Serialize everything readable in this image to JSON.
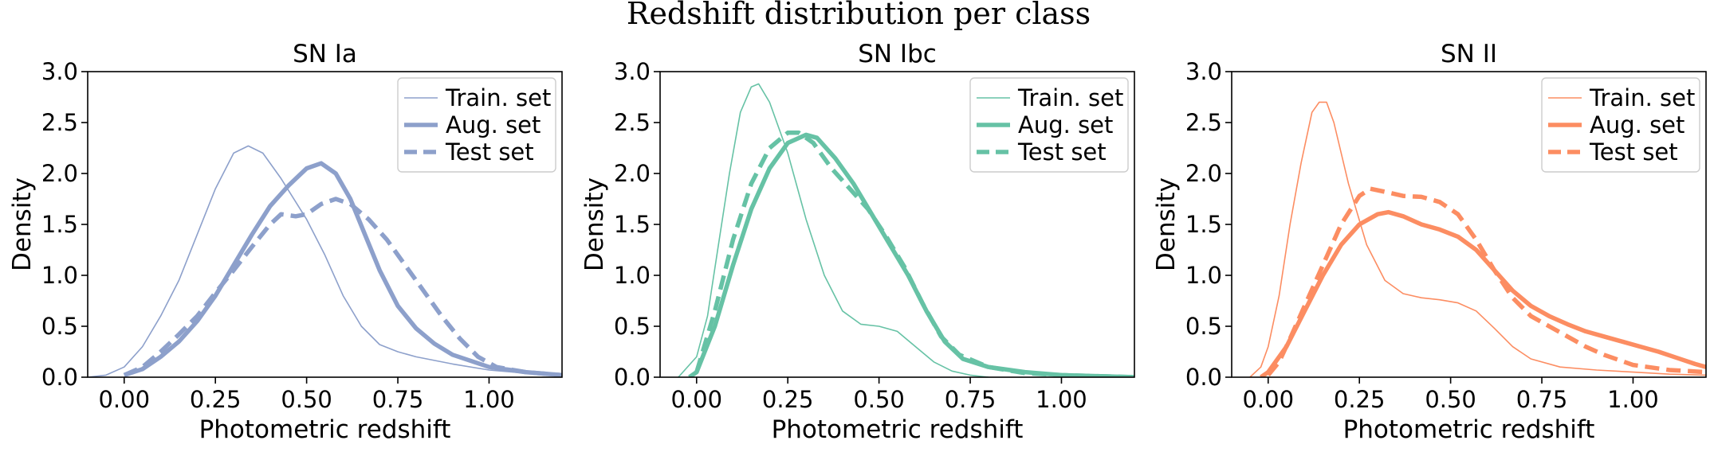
{
  "figure_title": "Redshift distribution per class",
  "chart_data": [
    {
      "type": "line",
      "title": "SN Ia",
      "xlabel": "Photometric redshift",
      "ylabel": "Density",
      "xlim": [
        -0.1,
        1.2
      ],
      "ylim": [
        0,
        3
      ],
      "xticks": [
        0,
        0.25,
        0.5,
        0.75,
        1.0
      ],
      "xtick_labels": [
        "0.00",
        "0.25",
        "0.50",
        "0.75",
        "1.00"
      ],
      "yticks": [
        0,
        0.5,
        1,
        1.5,
        2,
        2.5,
        3
      ],
      "ytick_labels": [
        "0.0",
        "0.5",
        "1.0",
        "1.5",
        "2.0",
        "2.5",
        "3.0"
      ],
      "color": "#8DA0CB",
      "legend_position": "top-right",
      "series": [
        {
          "name": "Train. set",
          "style": "thin",
          "points": [
            [
              -0.1,
              0.0
            ],
            [
              -0.05,
              0.02
            ],
            [
              0.0,
              0.1
            ],
            [
              0.05,
              0.3
            ],
            [
              0.1,
              0.6
            ],
            [
              0.15,
              0.95
            ],
            [
              0.2,
              1.4
            ],
            [
              0.25,
              1.85
            ],
            [
              0.3,
              2.2
            ],
            [
              0.34,
              2.27
            ],
            [
              0.38,
              2.2
            ],
            [
              0.43,
              1.95
            ],
            [
              0.5,
              1.55
            ],
            [
              0.55,
              1.2
            ],
            [
              0.6,
              0.8
            ],
            [
              0.65,
              0.5
            ],
            [
              0.7,
              0.32
            ],
            [
              0.75,
              0.25
            ],
            [
              0.8,
              0.2
            ],
            [
              0.9,
              0.13
            ],
            [
              1.0,
              0.07
            ],
            [
              1.1,
              0.04
            ],
            [
              1.2,
              0.02
            ]
          ]
        },
        {
          "name": "Aug. set",
          "style": "thick",
          "points": [
            [
              0.0,
              0.02
            ],
            [
              0.05,
              0.08
            ],
            [
              0.1,
              0.2
            ],
            [
              0.15,
              0.35
            ],
            [
              0.2,
              0.55
            ],
            [
              0.25,
              0.8
            ],
            [
              0.3,
              1.1
            ],
            [
              0.35,
              1.4
            ],
            [
              0.4,
              1.68
            ],
            [
              0.45,
              1.88
            ],
            [
              0.5,
              2.05
            ],
            [
              0.54,
              2.1
            ],
            [
              0.58,
              2.0
            ],
            [
              0.62,
              1.75
            ],
            [
              0.66,
              1.4
            ],
            [
              0.7,
              1.05
            ],
            [
              0.75,
              0.7
            ],
            [
              0.8,
              0.48
            ],
            [
              0.85,
              0.33
            ],
            [
              0.9,
              0.22
            ],
            [
              1.0,
              0.1
            ],
            [
              1.1,
              0.05
            ],
            [
              1.2,
              0.02
            ]
          ]
        },
        {
          "name": "Test set",
          "style": "dashed",
          "points": [
            [
              0.0,
              0.02
            ],
            [
              0.05,
              0.1
            ],
            [
              0.1,
              0.25
            ],
            [
              0.15,
              0.42
            ],
            [
              0.2,
              0.6
            ],
            [
              0.25,
              0.83
            ],
            [
              0.3,
              1.05
            ],
            [
              0.35,
              1.28
            ],
            [
              0.4,
              1.5
            ],
            [
              0.43,
              1.6
            ],
            [
              0.47,
              1.58
            ],
            [
              0.5,
              1.6
            ],
            [
              0.54,
              1.7
            ],
            [
              0.58,
              1.75
            ],
            [
              0.62,
              1.7
            ],
            [
              0.67,
              1.55
            ],
            [
              0.72,
              1.35
            ],
            [
              0.77,
              1.1
            ],
            [
              0.82,
              0.85
            ],
            [
              0.87,
              0.6
            ],
            [
              0.92,
              0.38
            ],
            [
              0.97,
              0.2
            ],
            [
              1.02,
              0.1
            ],
            [
              1.1,
              0.05
            ],
            [
              1.2,
              0.02
            ]
          ]
        }
      ]
    },
    {
      "type": "line",
      "title": "SN Ibc",
      "xlabel": "Photometric redshift",
      "ylabel": "Density",
      "xlim": [
        -0.1,
        1.2
      ],
      "ylim": [
        0,
        3
      ],
      "xticks": [
        0,
        0.25,
        0.5,
        0.75,
        1.0
      ],
      "xtick_labels": [
        "0.00",
        "0.25",
        "0.50",
        "0.75",
        "1.00"
      ],
      "yticks": [
        0,
        0.5,
        1,
        1.5,
        2,
        2.5,
        3
      ],
      "ytick_labels": [
        "0.0",
        "0.5",
        "1.0",
        "1.5",
        "2.0",
        "2.5",
        "3.0"
      ],
      "color": "#66C2A5",
      "legend_position": "top-right",
      "series": [
        {
          "name": "Train. set",
          "style": "thin",
          "points": [
            [
              -0.05,
              0.0
            ],
            [
              0.0,
              0.2
            ],
            [
              0.03,
              0.6
            ],
            [
              0.06,
              1.3
            ],
            [
              0.09,
              2.0
            ],
            [
              0.12,
              2.6
            ],
            [
              0.15,
              2.85
            ],
            [
              0.17,
              2.88
            ],
            [
              0.2,
              2.7
            ],
            [
              0.25,
              2.2
            ],
            [
              0.3,
              1.55
            ],
            [
              0.35,
              1.0
            ],
            [
              0.4,
              0.65
            ],
            [
              0.45,
              0.52
            ],
            [
              0.5,
              0.5
            ],
            [
              0.55,
              0.45
            ],
            [
              0.6,
              0.3
            ],
            [
              0.65,
              0.15
            ],
            [
              0.7,
              0.06
            ],
            [
              0.75,
              0.02
            ],
            [
              0.8,
              0.0
            ]
          ]
        },
        {
          "name": "Aug. set",
          "style": "thick",
          "points": [
            [
              -0.02,
              0.0
            ],
            [
              0.0,
              0.05
            ],
            [
              0.05,
              0.5
            ],
            [
              0.1,
              1.1
            ],
            [
              0.15,
              1.65
            ],
            [
              0.2,
              2.05
            ],
            [
              0.25,
              2.3
            ],
            [
              0.3,
              2.38
            ],
            [
              0.33,
              2.35
            ],
            [
              0.38,
              2.15
            ],
            [
              0.43,
              1.9
            ],
            [
              0.48,
              1.6
            ],
            [
              0.53,
              1.3
            ],
            [
              0.58,
              1.0
            ],
            [
              0.63,
              0.65
            ],
            [
              0.68,
              0.35
            ],
            [
              0.73,
              0.18
            ],
            [
              0.8,
              0.1
            ],
            [
              0.9,
              0.05
            ],
            [
              1.0,
              0.02
            ],
            [
              1.2,
              0.0
            ]
          ]
        },
        {
          "name": "Test set",
          "style": "dashed",
          "points": [
            [
              0.0,
              0.05
            ],
            [
              0.05,
              0.65
            ],
            [
              0.1,
              1.35
            ],
            [
              0.15,
              1.9
            ],
            [
              0.2,
              2.25
            ],
            [
              0.25,
              2.4
            ],
            [
              0.28,
              2.4
            ],
            [
              0.32,
              2.3
            ],
            [
              0.37,
              2.05
            ],
            [
              0.42,
              1.85
            ],
            [
              0.47,
              1.65
            ],
            [
              0.52,
              1.38
            ],
            [
              0.57,
              1.08
            ],
            [
              0.62,
              0.72
            ],
            [
              0.67,
              0.4
            ],
            [
              0.72,
              0.22
            ],
            [
              0.8,
              0.1
            ],
            [
              0.9,
              0.04
            ],
            [
              1.0,
              0.02
            ],
            [
              1.2,
              0.0
            ]
          ]
        }
      ]
    },
    {
      "type": "line",
      "title": "SN II",
      "xlabel": "Photometric redshift",
      "ylabel": "Density",
      "xlim": [
        -0.1,
        1.2
      ],
      "ylim": [
        0,
        3
      ],
      "xticks": [
        0,
        0.25,
        0.5,
        0.75,
        1.0
      ],
      "xtick_labels": [
        "0.00",
        "0.25",
        "0.50",
        "0.75",
        "1.00"
      ],
      "yticks": [
        0,
        0.5,
        1,
        1.5,
        2,
        2.5,
        3
      ],
      "ytick_labels": [
        "0.0",
        "0.5",
        "1.0",
        "1.5",
        "2.0",
        "2.5",
        "3.0"
      ],
      "color": "#FC8D62",
      "legend_position": "top-right",
      "series": [
        {
          "name": "Train. set",
          "style": "thin",
          "points": [
            [
              -0.05,
              0.0
            ],
            [
              -0.02,
              0.1
            ],
            [
              0.0,
              0.3
            ],
            [
              0.03,
              0.8
            ],
            [
              0.06,
              1.5
            ],
            [
              0.09,
              2.1
            ],
            [
              0.12,
              2.6
            ],
            [
              0.14,
              2.7
            ],
            [
              0.16,
              2.7
            ],
            [
              0.18,
              2.5
            ],
            [
              0.22,
              1.9
            ],
            [
              0.27,
              1.3
            ],
            [
              0.32,
              0.95
            ],
            [
              0.37,
              0.82
            ],
            [
              0.42,
              0.78
            ],
            [
              0.47,
              0.76
            ],
            [
              0.52,
              0.73
            ],
            [
              0.57,
              0.65
            ],
            [
              0.62,
              0.48
            ],
            [
              0.67,
              0.3
            ],
            [
              0.72,
              0.18
            ],
            [
              0.8,
              0.1
            ],
            [
              0.9,
              0.07
            ],
            [
              1.0,
              0.05
            ],
            [
              1.1,
              0.03
            ],
            [
              1.2,
              0.02
            ]
          ]
        },
        {
          "name": "Aug. set",
          "style": "thick",
          "points": [
            [
              -0.02,
              0.0
            ],
            [
              0.0,
              0.05
            ],
            [
              0.05,
              0.3
            ],
            [
              0.1,
              0.65
            ],
            [
              0.15,
              1.0
            ],
            [
              0.2,
              1.3
            ],
            [
              0.25,
              1.5
            ],
            [
              0.3,
              1.6
            ],
            [
              0.33,
              1.62
            ],
            [
              0.37,
              1.58
            ],
            [
              0.42,
              1.5
            ],
            [
              0.47,
              1.45
            ],
            [
              0.52,
              1.38
            ],
            [
              0.57,
              1.25
            ],
            [
              0.62,
              1.05
            ],
            [
              0.67,
              0.85
            ],
            [
              0.72,
              0.7
            ],
            [
              0.77,
              0.6
            ],
            [
              0.82,
              0.52
            ],
            [
              0.87,
              0.45
            ],
            [
              0.92,
              0.4
            ],
            [
              0.97,
              0.35
            ],
            [
              1.02,
              0.3
            ],
            [
              1.07,
              0.25
            ],
            [
              1.12,
              0.19
            ],
            [
              1.17,
              0.13
            ],
            [
              1.2,
              0.1
            ]
          ]
        },
        {
          "name": "Test set",
          "style": "dashed",
          "points": [
            [
              0.0,
              0.02
            ],
            [
              0.03,
              0.15
            ],
            [
              0.06,
              0.38
            ],
            [
              0.1,
              0.7
            ],
            [
              0.15,
              1.1
            ],
            [
              0.2,
              1.5
            ],
            [
              0.25,
              1.78
            ],
            [
              0.28,
              1.85
            ],
            [
              0.32,
              1.82
            ],
            [
              0.37,
              1.78
            ],
            [
              0.42,
              1.77
            ],
            [
              0.47,
              1.72
            ],
            [
              0.52,
              1.6
            ],
            [
              0.57,
              1.35
            ],
            [
              0.62,
              1.05
            ],
            [
              0.67,
              0.78
            ],
            [
              0.72,
              0.6
            ],
            [
              0.77,
              0.5
            ],
            [
              0.82,
              0.4
            ],
            [
              0.87,
              0.3
            ],
            [
              0.92,
              0.22
            ],
            [
              1.0,
              0.12
            ],
            [
              1.1,
              0.07
            ],
            [
              1.2,
              0.05
            ]
          ]
        }
      ]
    }
  ]
}
